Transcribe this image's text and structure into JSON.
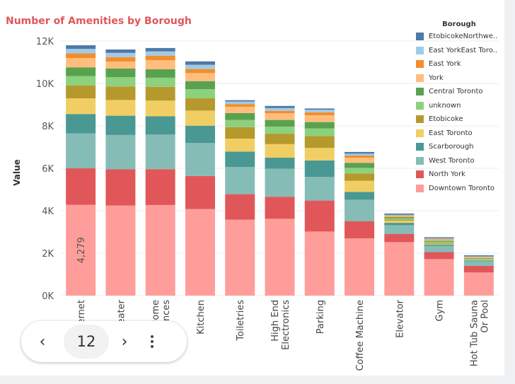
{
  "chart_data": {
    "type": "bar",
    "stacked": true,
    "title": "Number of Amenities by Borough",
    "ylabel": "Value",
    "xlabel": "",
    "ylim": [
      0,
      12000
    ],
    "yticks": [
      0,
      2000,
      4000,
      6000,
      8000,
      10000,
      12000
    ],
    "ytick_labels": [
      "0K",
      "2K",
      "4K",
      "6K",
      "8K",
      "10K",
      "12K"
    ],
    "categories": [
      "Internet",
      "Ac Heater",
      "Home Appliances",
      "Kitchen",
      "Toiletries",
      "High End Electronics",
      "Parking",
      "Coffee Machine",
      "Elevator",
      "Gym",
      "Hot Tub Sauna Or Pool"
    ],
    "category_lines": [
      [
        "Internet"
      ],
      [
        "Ac Heater"
      ],
      [
        "Home",
        "Appliances"
      ],
      [
        "Kitchen"
      ],
      [
        "Toiletries"
      ],
      [
        "High End",
        "Electronics"
      ],
      [
        "Parking"
      ],
      [
        "Coffee Machine"
      ],
      [
        "Elevator"
      ],
      [
        "Gym"
      ],
      [
        "Hot Tub Sauna",
        "Or Pool"
      ]
    ],
    "legend_title": "Borough",
    "legend_position": "right",
    "grid": true,
    "series": [
      {
        "name": "Downtown Toronto",
        "color": "#ff9d9a",
        "values": [
          4279,
          4250,
          4270,
          4080,
          3580,
          3620,
          3020,
          2700,
          2520,
          1720,
          1090
        ]
      },
      {
        "name": "North York",
        "color": "#e15759",
        "values": [
          1720,
          1700,
          1690,
          1560,
          1200,
          1040,
          1460,
          800,
          380,
          330,
          310
        ]
      },
      {
        "name": "West Toronto",
        "color": "#86bcb6",
        "values": [
          1650,
          1620,
          1630,
          1560,
          1280,
          1320,
          1120,
          1020,
          420,
          300,
          220
        ]
      },
      {
        "name": "Scarborough",
        "color": "#499894",
        "values": [
          910,
          910,
          860,
          810,
          730,
          520,
          770,
          370,
          110,
          50,
          40
        ]
      },
      {
        "name": "East Toronto",
        "color": "#f1ce63",
        "values": [
          740,
          740,
          740,
          710,
          610,
          640,
          590,
          520,
          100,
          40,
          30
        ]
      },
      {
        "name": "Etobicoke",
        "color": "#b6992d",
        "values": [
          610,
          640,
          650,
          590,
          540,
          490,
          560,
          350,
          60,
          40,
          20
        ]
      },
      {
        "name": "unknown",
        "color": "#8cd17d",
        "values": [
          440,
          440,
          430,
          420,
          340,
          330,
          360,
          260,
          60,
          60,
          30
        ]
      },
      {
        "name": "Central Toronto",
        "color": "#59a14f",
        "values": [
          410,
          400,
          400,
          380,
          320,
          320,
          300,
          240,
          50,
          50,
          30
        ]
      },
      {
        "name": "York",
        "color": "#ffbe7d",
        "values": [
          440,
          330,
          430,
          380,
          300,
          310,
          320,
          240,
          50,
          50,
          40
        ]
      },
      {
        "name": "East York",
        "color": "#f28e2b",
        "values": [
          220,
          210,
          210,
          190,
          130,
          120,
          140,
          100,
          30,
          30,
          20
        ]
      },
      {
        "name": "East YorkEast Toro..",
        "color": "#a0cbe8",
        "values": [
          210,
          200,
          200,
          200,
          120,
          130,
          120,
          90,
          30,
          30,
          20
        ]
      },
      {
        "name": "EtobicokeNorthwe..",
        "color": "#4e79a7",
        "values": [
          170,
          160,
          160,
          160,
          60,
          100,
          60,
          80,
          60,
          50,
          50
        ]
      }
    ],
    "data_labels": [
      {
        "category": "Internet",
        "series": "Downtown Toronto",
        "text": "4,279"
      }
    ]
  },
  "pager": {
    "prev_icon": "chevron-left-icon",
    "page": "12",
    "next_icon": "chevron-right-icon",
    "more_icon": "more-vertical-icon"
  }
}
